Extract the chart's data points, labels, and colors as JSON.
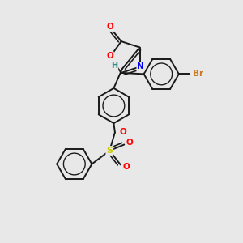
{
  "bg_color": "#e8e8e8",
  "bond_color": "#1a1a1a",
  "bond_width": 1.4,
  "atom_colors": {
    "O": "#ff0000",
    "N": "#0000ff",
    "Br": "#cc7722",
    "S": "#cccc00",
    "H": "#2e8b8b"
  },
  "figsize": [
    3.0,
    3.0
  ],
  "dpi": 100,
  "xlim": [
    0,
    10
  ],
  "ylim": [
    0,
    10
  ]
}
